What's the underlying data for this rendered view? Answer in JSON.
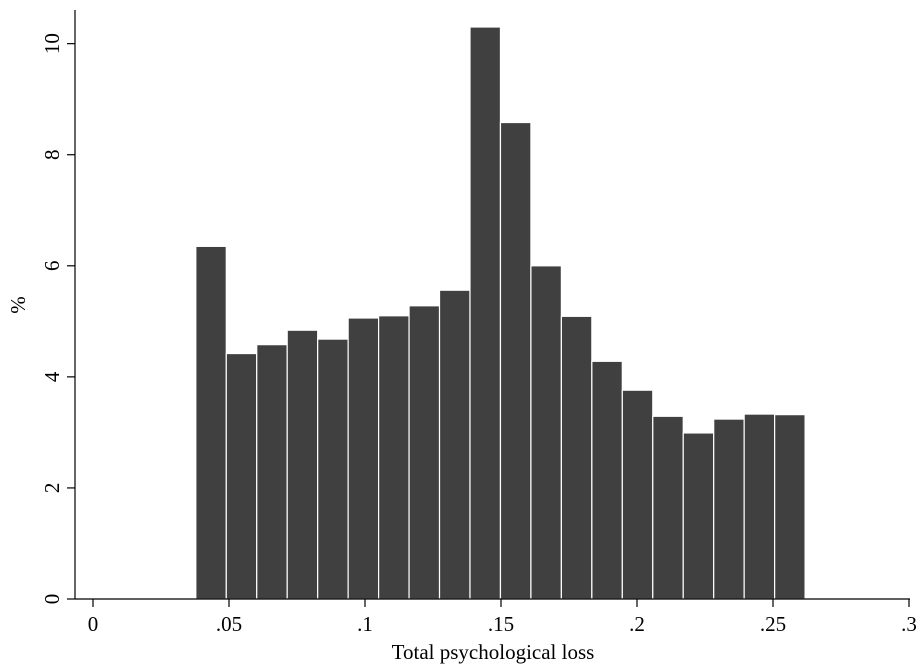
{
  "chart_data": {
    "type": "bar",
    "subtype": "histogram",
    "title": "",
    "xlabel": "Total psychological loss",
    "ylabel": "%",
    "xlim": [
      0,
      0.3
    ],
    "ylim": [
      0,
      10.3
    ],
    "x_ticks": [
      0,
      0.05,
      0.1,
      0.15,
      0.2,
      0.25,
      0.3
    ],
    "x_tick_labels": [
      "0",
      ".05",
      ".1",
      ".15",
      ".2",
      ".25",
      ".3"
    ],
    "y_ticks": [
      0,
      2,
      4,
      6,
      8,
      10
    ],
    "y_tick_labels": [
      "0",
      "2",
      "4",
      "6",
      "8",
      "10"
    ],
    "grid": false,
    "bar_color": "#404040",
    "bin_width": 0.0112,
    "bins": [
      {
        "x0": 0.0378,
        "value": 6.35
      },
      {
        "x0": 0.049,
        "value": 4.42
      },
      {
        "x0": 0.0602,
        "value": 4.58
      },
      {
        "x0": 0.0714,
        "value": 4.84
      },
      {
        "x0": 0.0826,
        "value": 4.68
      },
      {
        "x0": 0.0938,
        "value": 5.06
      },
      {
        "x0": 0.105,
        "value": 5.1
      },
      {
        "x0": 0.1162,
        "value": 5.28
      },
      {
        "x0": 0.1274,
        "value": 5.56
      },
      {
        "x0": 0.1386,
        "value": 10.3
      },
      {
        "x0": 0.1498,
        "value": 8.58
      },
      {
        "x0": 0.161,
        "value": 6.0
      },
      {
        "x0": 0.1722,
        "value": 5.09
      },
      {
        "x0": 0.1834,
        "value": 4.28
      },
      {
        "x0": 0.1946,
        "value": 3.76
      },
      {
        "x0": 0.2058,
        "value": 3.29
      },
      {
        "x0": 0.217,
        "value": 2.99
      },
      {
        "x0": 0.2282,
        "value": 3.24
      },
      {
        "x0": 0.2394,
        "value": 3.33
      },
      {
        "x0": 0.2506,
        "value": 3.32
      }
    ]
  }
}
